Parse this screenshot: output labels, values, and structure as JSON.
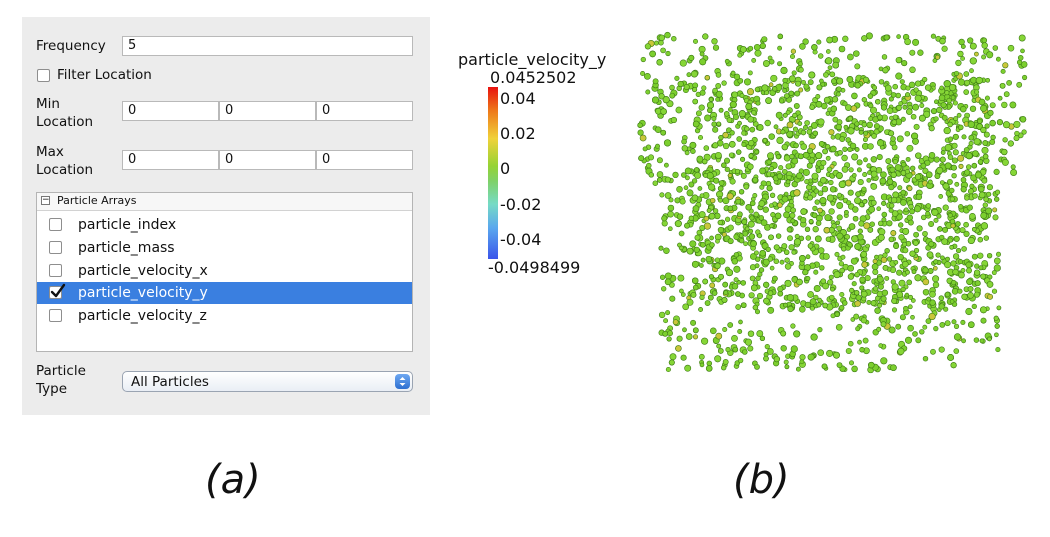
{
  "panel_a": {
    "frequency": {
      "label": "Frequency",
      "value": "5"
    },
    "filter_location": {
      "label": "Filter Location",
      "checked": false
    },
    "min_location": {
      "label_line1": "Min",
      "label_line2": "Location",
      "values": [
        "0",
        "0",
        "0"
      ]
    },
    "max_location": {
      "label_line1": "Max",
      "label_line2": "Location",
      "values": [
        "0",
        "0",
        "0"
      ]
    },
    "particle_arrays": {
      "header": "Particle Arrays",
      "items": [
        {
          "label": "particle_index",
          "checked": false,
          "selected": false
        },
        {
          "label": "particle_mass",
          "checked": false,
          "selected": false
        },
        {
          "label": "particle_velocity_x",
          "checked": false,
          "selected": false
        },
        {
          "label": "particle_velocity_y",
          "checked": true,
          "selected": true
        },
        {
          "label": "particle_velocity_z",
          "checked": false,
          "selected": false
        }
      ]
    },
    "particle_type": {
      "label_line1": "Particle",
      "label_line2": "Type",
      "value": "All Particles"
    },
    "caption": "(a)"
  },
  "panel_b": {
    "colorbar": {
      "title": "particle_velocity_y",
      "max_label": "0.0452502",
      "min_label": "-0.0498499",
      "ticks": [
        "0.04",
        "0.02",
        "0",
        "-0.02",
        "-0.04"
      ],
      "colors": {
        "high": "#e8120f",
        "mid": "#95d335",
        "low": "#3b55ea"
      }
    },
    "point_color": "#7ccf2e",
    "caption": "(b)"
  }
}
